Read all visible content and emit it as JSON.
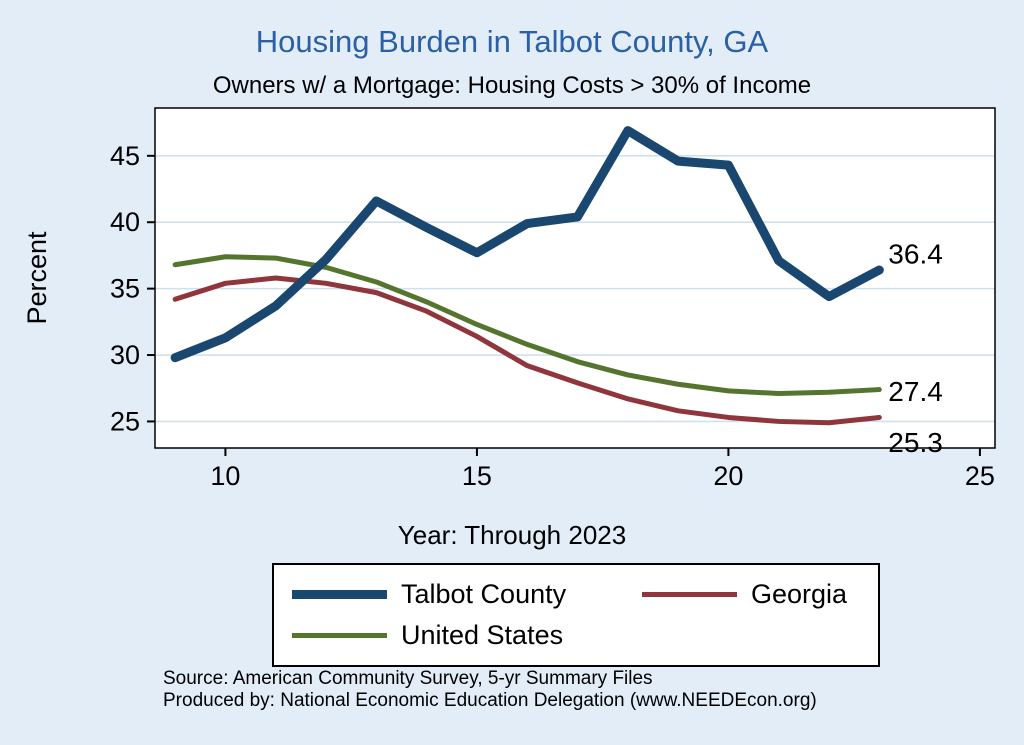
{
  "colors": {
    "page_background": "#e3edf8",
    "plot_background": "#ffffff",
    "grid": "#cfe0ee",
    "axis": "#000000",
    "title": "#2a60a5"
  },
  "chart_data": {
    "type": "line",
    "title": "Housing Burden in Talbot County, GA",
    "subtitle": "Owners w/ a Mortgage: Housing Costs > 30% of Income",
    "xlabel": "Year: Through 2023",
    "ylabel": "Percent",
    "x": [
      9,
      10,
      11,
      12,
      13,
      14,
      15,
      16,
      17,
      18,
      19,
      20,
      21,
      22,
      23
    ],
    "series": [
      {
        "name": "Talbot County",
        "color": "#1a476f",
        "values": [
          29.8,
          31.3,
          33.7,
          37.2,
          41.6,
          39.6,
          37.7,
          39.9,
          40.4,
          46.9,
          44.6,
          44.3,
          37.1,
          34.4,
          36.4
        ]
      },
      {
        "name": "Georgia",
        "color": "#90353b",
        "values": [
          34.2,
          35.4,
          35.8,
          35.4,
          34.7,
          33.3,
          31.4,
          29.2,
          27.9,
          26.7,
          25.8,
          25.3,
          25.0,
          24.9,
          25.3
        ]
      },
      {
        "name": "United States",
        "color": "#55752f",
        "values": [
          36.8,
          37.4,
          37.3,
          36.6,
          35.5,
          34.0,
          32.3,
          30.8,
          29.5,
          28.5,
          27.8,
          27.3,
          27.1,
          27.2,
          27.4
        ]
      }
    ],
    "end_labels": [
      {
        "series": "Talbot County",
        "text": "36.4"
      },
      {
        "series": "United States",
        "text": "27.4"
      },
      {
        "series": "Georgia",
        "text": "25.3"
      }
    ],
    "xticks": [
      10,
      15,
      20,
      25
    ],
    "yticks": [
      25,
      30,
      35,
      40,
      45
    ],
    "xlim": [
      8.6,
      25.3
    ],
    "ylim": [
      23.0,
      48.6
    ],
    "grid": "horizontal",
    "legend_position": "bottom"
  },
  "legend": {
    "items": [
      "Talbot County",
      "Georgia",
      "United States"
    ]
  },
  "footer": {
    "line1": "Source: American Community Survey, 5-yr Summary Files",
    "line2": "Produced by: National Economic Education Delegation (www.NEEDEcon.org)"
  }
}
